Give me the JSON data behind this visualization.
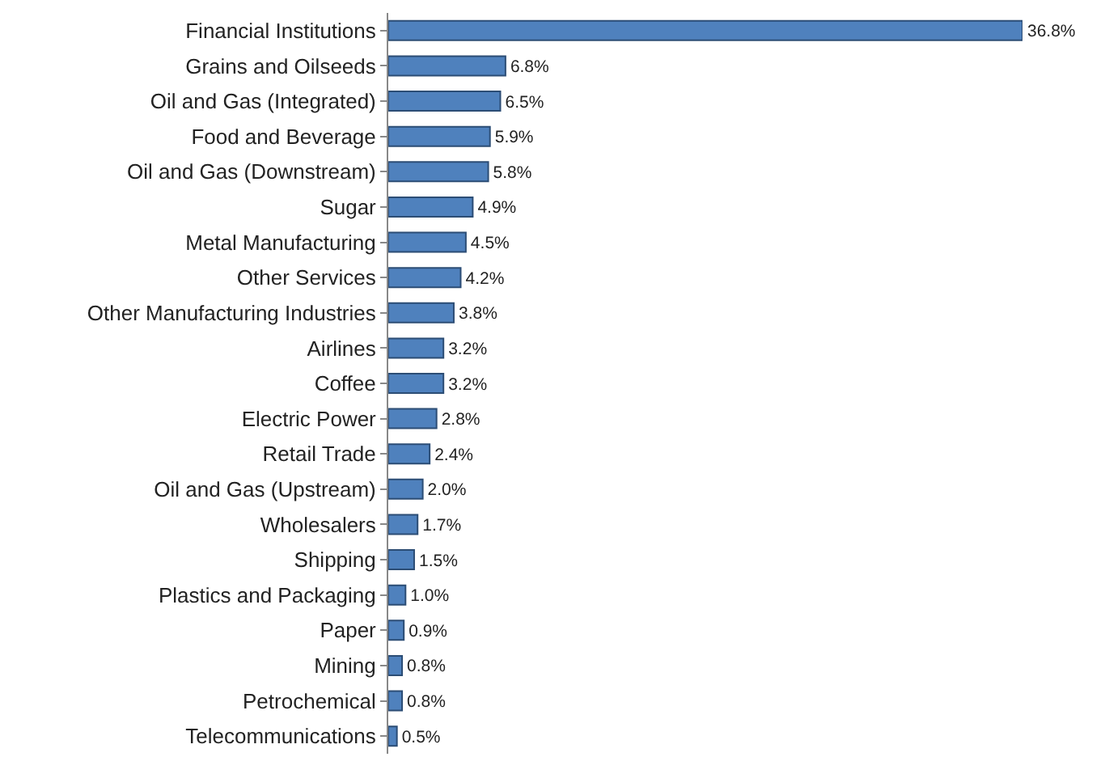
{
  "chart_data": {
    "type": "bar",
    "orientation": "horizontal",
    "color": "#4f81bd",
    "categories": [
      "Financial Institutions",
      "Grains and Oilseeds",
      "Oil and Gas (Integrated)",
      "Food and Beverage",
      "Oil and Gas (Downstream)",
      "Sugar",
      "Metal Manufacturing",
      "Other Services",
      "Other Manufacturing Industries",
      "Airlines",
      "Coffee",
      "Electric Power",
      "Retail Trade",
      "Oil and Gas (Upstream)",
      "Wholesalers",
      "Shipping",
      "Plastics and Packaging",
      "Paper",
      "Mining",
      "Petrochemical",
      "Telecommunications"
    ],
    "values": [
      36.8,
      6.8,
      6.5,
      5.9,
      5.8,
      4.9,
      4.5,
      4.2,
      3.8,
      3.2,
      3.2,
      2.8,
      2.4,
      2.0,
      1.7,
      1.5,
      1.0,
      0.9,
      0.8,
      0.8,
      0.5
    ],
    "value_labels": [
      "36.8%",
      "6.8%",
      "6.5%",
      "5.9%",
      "5.8%",
      "4.9%",
      "4.5%",
      "4.2%",
      "3.8%",
      "3.2%",
      "3.2%",
      "2.8%",
      "2.4%",
      "2.0%",
      "1.7%",
      "1.5%",
      "1.0%",
      "0.9%",
      "0.8%",
      "0.8%",
      "0.5%"
    ],
    "legend": false
  }
}
